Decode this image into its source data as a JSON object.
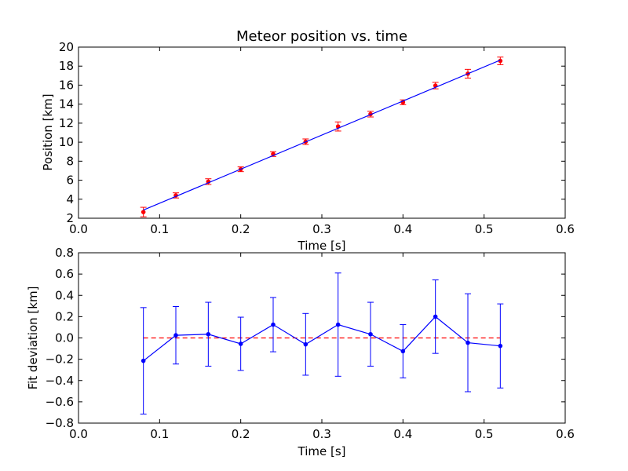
{
  "chart_data": [
    {
      "type": "line",
      "title": "Meteor position vs. time",
      "xlabel": "Time [s]",
      "ylabel": "Position [km]",
      "xlim": [
        0.0,
        0.6
      ],
      "ylim": [
        2,
        20
      ],
      "xticks": [
        "0.0",
        "0.1",
        "0.2",
        "0.3",
        "0.4",
        "0.5",
        "0.6"
      ],
      "yticks": [
        "2",
        "4",
        "6",
        "8",
        "10",
        "12",
        "14",
        "16",
        "18",
        "20"
      ],
      "grid": false,
      "series": [
        {
          "kind": "errorbar-points",
          "color": "#ff0000",
          "x": [
            0.08,
            0.12,
            0.16,
            0.2,
            0.24,
            0.28,
            0.32,
            0.36,
            0.4,
            0.44,
            0.48,
            0.52
          ],
          "y": [
            2.65,
            4.4,
            5.85,
            7.15,
            8.75,
            10.05,
            11.65,
            12.95,
            14.2,
            15.95,
            17.2,
            18.55
          ],
          "yerr": [
            0.5,
            0.27,
            0.3,
            0.25,
            0.25,
            0.29,
            0.48,
            0.3,
            0.25,
            0.34,
            0.46,
            0.4
          ]
        },
        {
          "kind": "fit-line",
          "color": "#0000ff",
          "x": [
            0.08,
            0.52
          ],
          "y": [
            2.86,
            18.63
          ]
        }
      ]
    },
    {
      "type": "line",
      "title": "",
      "xlabel": "Time [s]",
      "ylabel": "Fit deviation [km]",
      "xlim": [
        0.0,
        0.6
      ],
      "ylim": [
        -0.8,
        0.8
      ],
      "xticks": [
        "0.0",
        "0.1",
        "0.2",
        "0.3",
        "0.4",
        "0.5",
        "0.6"
      ],
      "yticks": [
        "−0.8",
        "−0.6",
        "−0.4",
        "−0.2",
        "0.0",
        "0.2",
        "0.4",
        "0.6",
        "0.8"
      ],
      "grid": false,
      "series": [
        {
          "kind": "zero-reference",
          "color": "#ff0000",
          "dashed": true,
          "x": [
            0.08,
            0.52
          ],
          "y": [
            0.0,
            0.0
          ]
        },
        {
          "kind": "errorbar-line",
          "color": "#0000ff",
          "x": [
            0.08,
            0.12,
            0.16,
            0.2,
            0.24,
            0.28,
            0.32,
            0.36,
            0.4,
            0.44,
            0.48,
            0.52
          ],
          "y": [
            -0.215,
            0.025,
            0.035,
            -0.055,
            0.125,
            -0.06,
            0.125,
            0.035,
            -0.125,
            0.2,
            -0.045,
            -0.075
          ],
          "yerr": [
            0.5,
            0.27,
            0.3,
            0.25,
            0.255,
            0.29,
            0.485,
            0.3,
            0.25,
            0.345,
            0.46,
            0.395
          ]
        }
      ]
    }
  ]
}
